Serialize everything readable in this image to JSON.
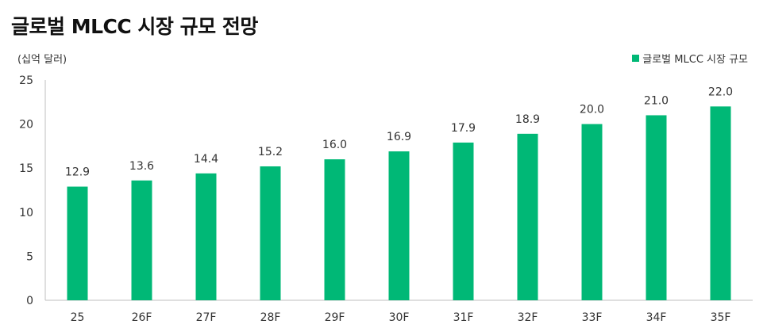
{
  "header": {
    "title": "글로벌 MLCC 시장 규모 전망"
  },
  "chart_data": {
    "type": "bar",
    "title": "글로벌 MLCC 시장 규모 전망",
    "unit_label": "(십억 달러)",
    "categories": [
      "25",
      "26F",
      "27F",
      "28F",
      "29F",
      "30F",
      "31F",
      "32F",
      "33F",
      "34F",
      "35F"
    ],
    "series": [
      {
        "name": "글로벌 MLCC 시장 규모",
        "values": [
          12.9,
          13.6,
          14.4,
          15.2,
          16.0,
          16.9,
          17.9,
          18.9,
          20.0,
          21.0,
          22.0
        ],
        "labels": [
          "12.9",
          "13.6",
          "14.4",
          "15.2",
          "16.0",
          "16.9",
          "17.9",
          "18.9",
          "20.0",
          "21.0",
          "22.0"
        ],
        "color": "#00b876"
      }
    ],
    "ylim": [
      0,
      25
    ],
    "yticks": [
      "0",
      "5",
      "10",
      "15",
      "20",
      "25"
    ],
    "grid": false,
    "legend_position": "top-right"
  }
}
